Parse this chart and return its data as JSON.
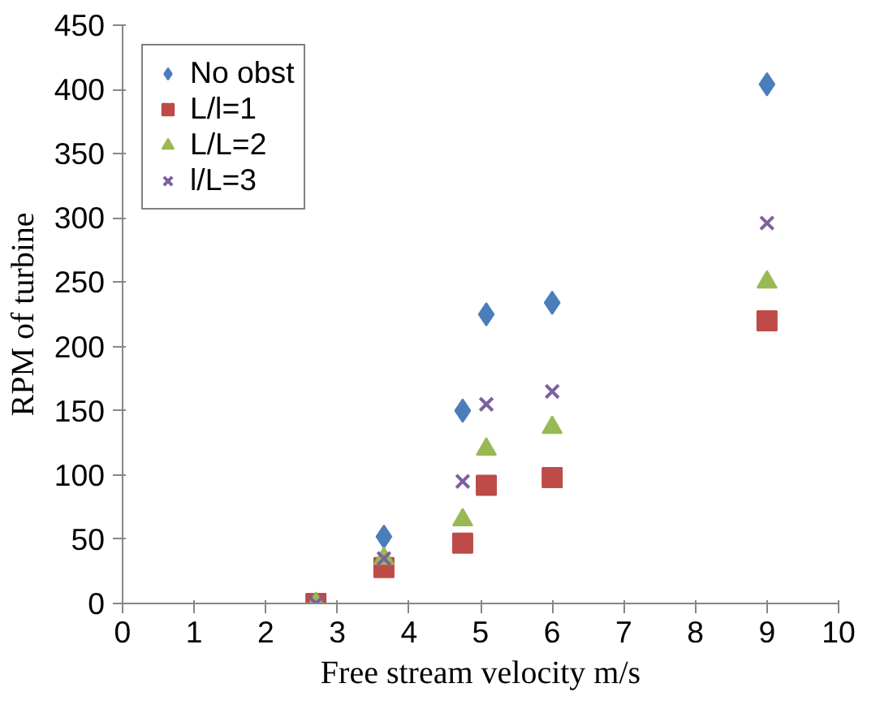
{
  "chart_data": {
    "type": "scatter",
    "xlabel": "Free stream velocity m/s",
    "ylabel": "RPM of turbine",
    "x": [
      2.7,
      3.65,
      4.75,
      5.08,
      6.0,
      9.0
    ],
    "series": [
      {
        "name": "No obst",
        "color": "#4a7ebb",
        "marker": "diamond",
        "values": [
          null,
          52,
          150,
          225,
          234,
          404
        ]
      },
      {
        "name": "L/l=1",
        "color": "#be4b48",
        "marker": "square",
        "values": [
          0,
          28,
          47,
          92,
          98,
          220
        ]
      },
      {
        "name": "L/L=2",
        "color": "#98b954",
        "marker": "triangle",
        "values": [
          0,
          35,
          65,
          120,
          137,
          250
        ]
      },
      {
        "name": "l/L=3",
        "color": "#7d60a0",
        "marker": "cross",
        "values": [
          0,
          35,
          95,
          155,
          165,
          296
        ]
      }
    ],
    "xlim": [
      0,
      10
    ],
    "xticks": [
      0,
      1,
      2,
      3,
      4,
      5,
      6,
      7,
      8,
      9,
      10
    ],
    "ylim": [
      0,
      450
    ],
    "yticks": [
      0,
      50,
      100,
      150,
      200,
      250,
      300,
      350,
      400,
      450
    ],
    "grid": false,
    "legend": "top left"
  }
}
